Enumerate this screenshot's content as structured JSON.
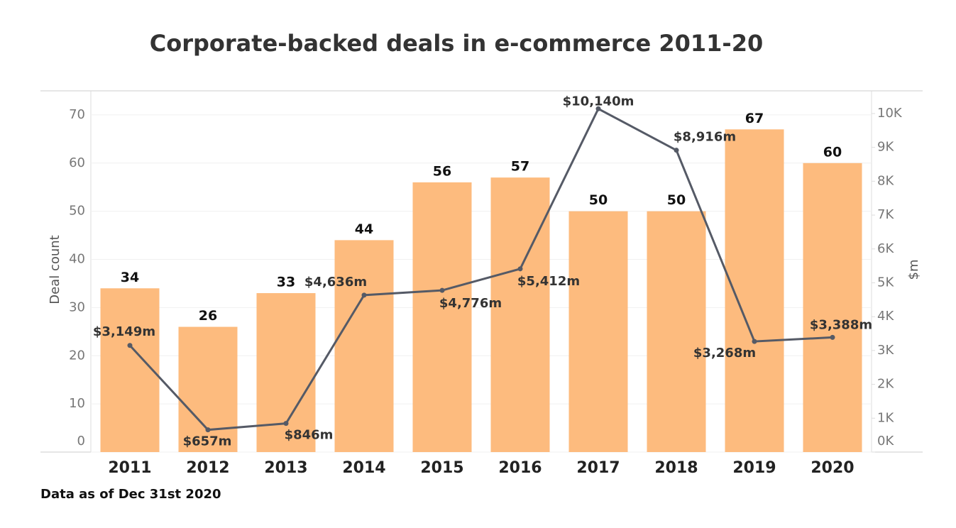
{
  "chart_data": {
    "type": "bar_line",
    "title": "Corporate-backed deals in e-commerce 2011-20",
    "categories": [
      "2011",
      "2012",
      "2013",
      "2014",
      "2015",
      "2016",
      "2017",
      "2018",
      "2019",
      "2020"
    ],
    "series": [
      {
        "name": "Deal count",
        "type": "bar",
        "color": "#fdbb7e",
        "values": [
          34,
          26,
          33,
          44,
          56,
          57,
          50,
          50,
          67,
          60
        ]
      },
      {
        "name": "$m",
        "type": "line",
        "axis": "y2",
        "color": "#555a66",
        "values": [
          3149,
          657,
          846,
          4636,
          4776,
          5412,
          10140,
          8916,
          3268,
          3388
        ],
        "value_labels": [
          "$3,149m",
          "$657m",
          "$846m",
          "$4,636m",
          "$4,776m",
          "$5,412m",
          "$10,140m",
          "$8,916m",
          "$3,268m",
          "$3,388m"
        ]
      }
    ],
    "ylabel": "Deal count",
    "y2label": "$m",
    "ylim": [
      0,
      75
    ],
    "yticks": [
      0,
      10,
      20,
      30,
      40,
      50,
      60,
      70
    ],
    "y2lim": [
      0,
      10670
    ],
    "y2ticks": [
      {
        "value": 0,
        "label": "0K"
      },
      {
        "value": 1000,
        "label": "1K"
      },
      {
        "value": 2000,
        "label": "2K"
      },
      {
        "value": 3000,
        "label": "3K"
      },
      {
        "value": 4000,
        "label": "4K"
      },
      {
        "value": 5000,
        "label": "5K"
      },
      {
        "value": 6000,
        "label": "6K"
      },
      {
        "value": 7000,
        "label": "7K"
      },
      {
        "value": 8000,
        "label": "8K"
      },
      {
        "value": 9000,
        "label": "9K"
      },
      {
        "value": 10000,
        "label": "10K"
      }
    ],
    "grid": true,
    "note": "Data as of Dec 31st 2020"
  }
}
